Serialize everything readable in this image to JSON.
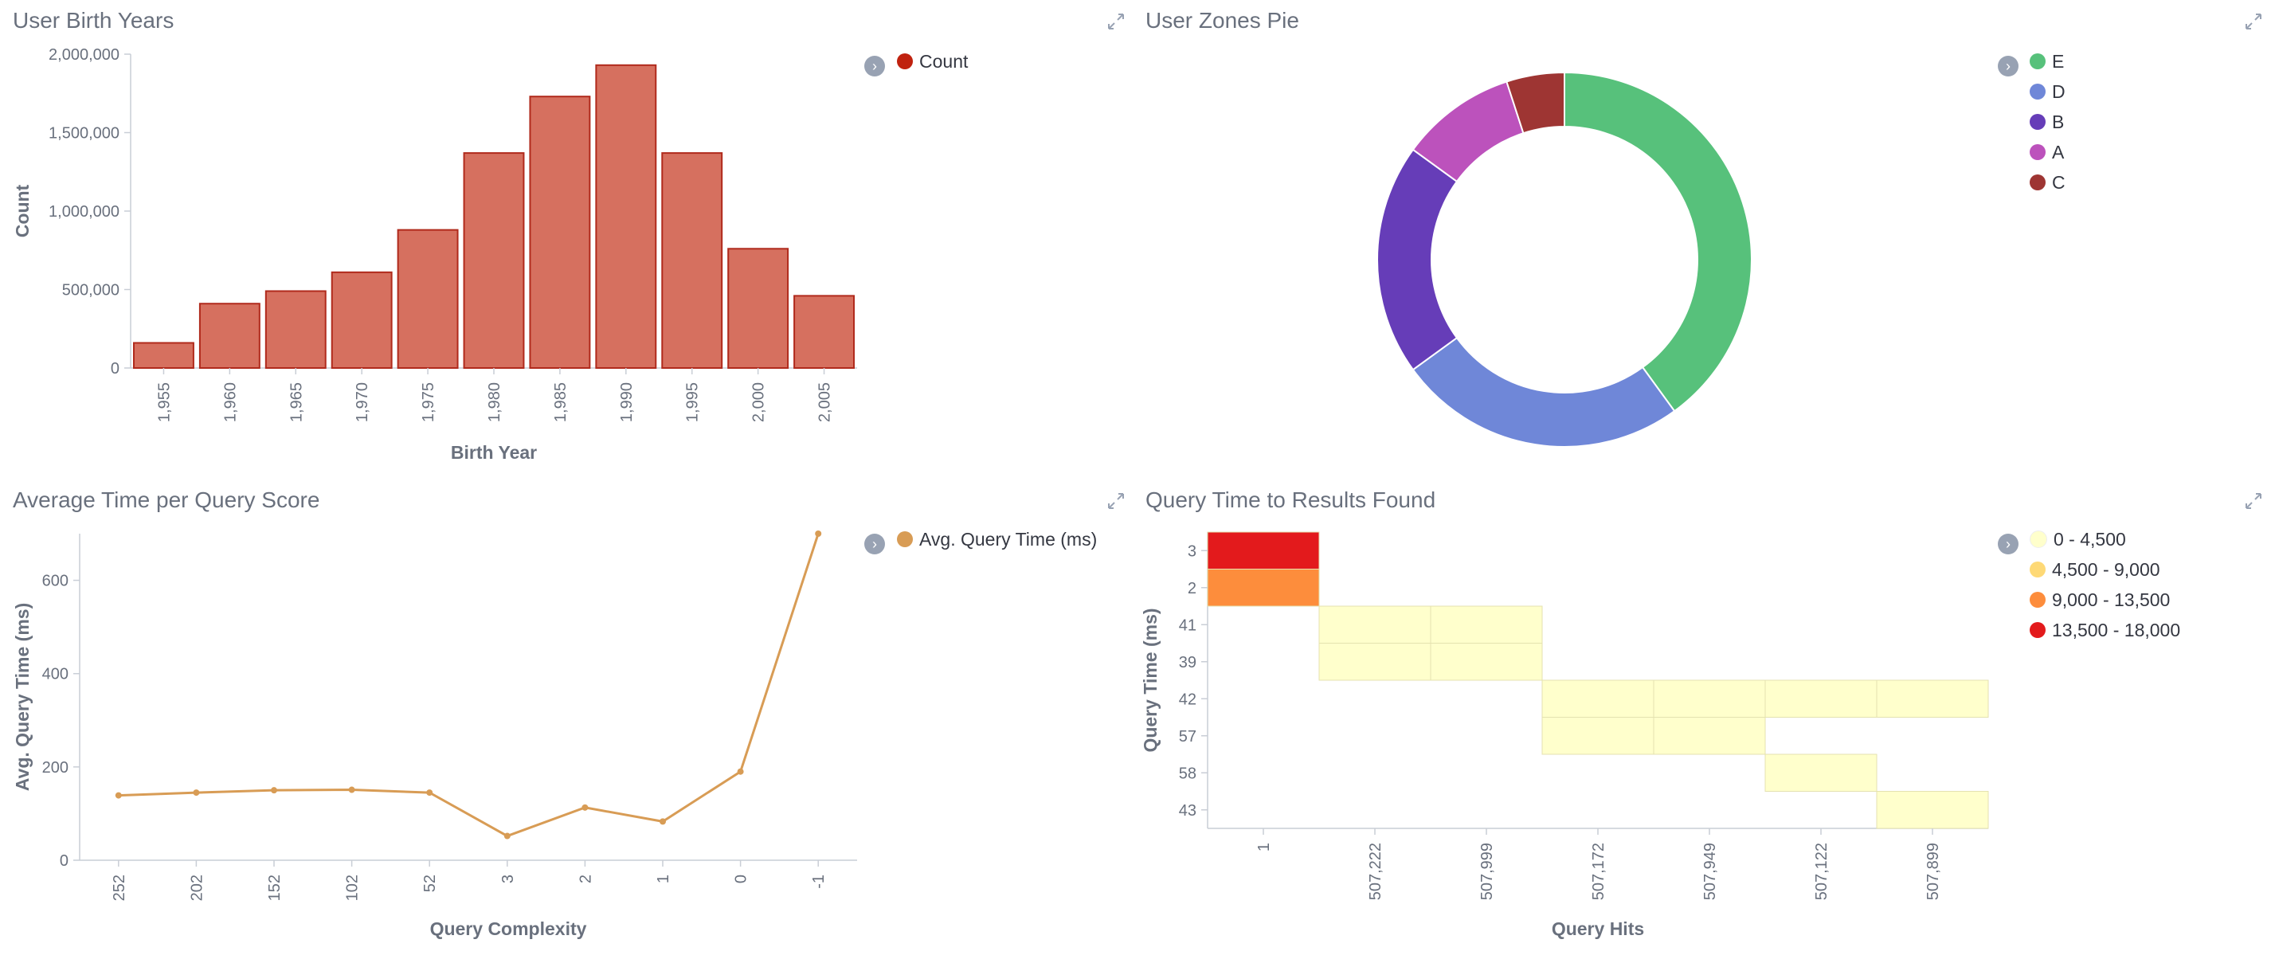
{
  "panels": [
    {
      "title": "User Birth Years"
    },
    {
      "title": "User Zones Pie"
    },
    {
      "title": "Average Time per Query Score"
    },
    {
      "title": "Query Time to Results Found"
    }
  ],
  "icons": {
    "expand": "expand-icon",
    "legend_toggle": "chevron-right-icon"
  },
  "colors": {
    "bar": "#d6705f",
    "bar_stroke": "#b02a1c",
    "line": "#d89c55",
    "axis": "#c9ced6"
  },
  "chart_data": [
    {
      "type": "bar",
      "title": "User Birth Years",
      "xlabel": "Birth Year",
      "ylabel": "Count",
      "categories": [
        "1,955",
        "1,960",
        "1,965",
        "1,970",
        "1,975",
        "1,980",
        "1,985",
        "1,990",
        "1,995",
        "2,000",
        "2,005"
      ],
      "values": [
        160000,
        410000,
        490000,
        610000,
        880000,
        1370000,
        1730000,
        1930000,
        1370000,
        760000,
        460000
      ],
      "ylim": [
        0,
        2000000
      ],
      "yticks": [
        "0",
        "500,000",
        "1,000,000",
        "1,500,000",
        "2,000,000"
      ],
      "ytick_values": [
        0,
        500000,
        1000000,
        1500000,
        2000000
      ],
      "legend": [
        {
          "label": "Count",
          "color": "#c0220f"
        }
      ]
    },
    {
      "type": "pie",
      "title": "User Zones Pie",
      "donut": true,
      "slices": [
        {
          "label": "E",
          "value": 40,
          "color": "#57c17b"
        },
        {
          "label": "D",
          "value": 25,
          "color": "#6f87d8"
        },
        {
          "label": "B",
          "value": 20,
          "color": "#663db8"
        },
        {
          "label": "A",
          "value": 10,
          "color": "#bc52bc"
        },
        {
          "label": "C",
          "value": 5,
          "color": "#9e3533"
        }
      ]
    },
    {
      "type": "line",
      "title": "Average Time per Query Score",
      "xlabel": "Query Complexity",
      "ylabel": "Avg. Query Time (ms)",
      "categories": [
        "252",
        "202",
        "152",
        "102",
        "52",
        "3",
        "2",
        "1",
        "0",
        "-1"
      ],
      "values": [
        139,
        145,
        150,
        151,
        145,
        52,
        113,
        83,
        190,
        700
      ],
      "ylim": [
        0,
        700
      ],
      "yticks": [
        "0",
        "200",
        "400",
        "600"
      ],
      "ytick_values": [
        0,
        200,
        400,
        600
      ],
      "legend": [
        {
          "label": "Avg. Query Time (ms)",
          "color": "#d89c55"
        }
      ]
    },
    {
      "type": "heatmap",
      "title": "Query Time to Results Found",
      "xlabel": "Query Hits",
      "ylabel": "Query Time (ms)",
      "x_labels": [
        "1",
        "507,222",
        "507,999",
        "507,172",
        "507,949",
        "507,122",
        "507,899"
      ],
      "y_labels": [
        "3",
        "2",
        "41",
        "39",
        "42",
        "57",
        "58",
        "43"
      ],
      "cells": [
        {
          "x": 0,
          "y": 0,
          "color": "#e31a1c"
        },
        {
          "x": 0,
          "y": 1,
          "color": "#fd8d3c"
        },
        {
          "x": 1,
          "y": 2,
          "color": "#ffffcc"
        },
        {
          "x": 1,
          "y": 3,
          "color": "#ffffcc"
        },
        {
          "x": 2,
          "y": 2,
          "color": "#ffffcc"
        },
        {
          "x": 2,
          "y": 3,
          "color": "#ffffcc"
        },
        {
          "x": 3,
          "y": 4,
          "color": "#ffffcc"
        },
        {
          "x": 3,
          "y": 5,
          "color": "#ffffcc"
        },
        {
          "x": 4,
          "y": 4,
          "color": "#ffffcc"
        },
        {
          "x": 4,
          "y": 5,
          "color": "#ffffcc"
        },
        {
          "x": 5,
          "y": 4,
          "color": "#ffffcc"
        },
        {
          "x": 5,
          "y": 6,
          "color": "#ffffcc"
        },
        {
          "x": 6,
          "y": 4,
          "color": "#ffffcc"
        },
        {
          "x": 6,
          "y": 7,
          "color": "#ffffcc"
        }
      ],
      "legend": [
        {
          "label": "0 - 4,500",
          "color": "#ffffcc"
        },
        {
          "label": "4,500 - 9,000",
          "color": "#fed976"
        },
        {
          "label": "9,000 - 13,500",
          "color": "#fd8d3c"
        },
        {
          "label": "13,500 - 18,000",
          "color": "#e31a1c"
        }
      ]
    }
  ]
}
